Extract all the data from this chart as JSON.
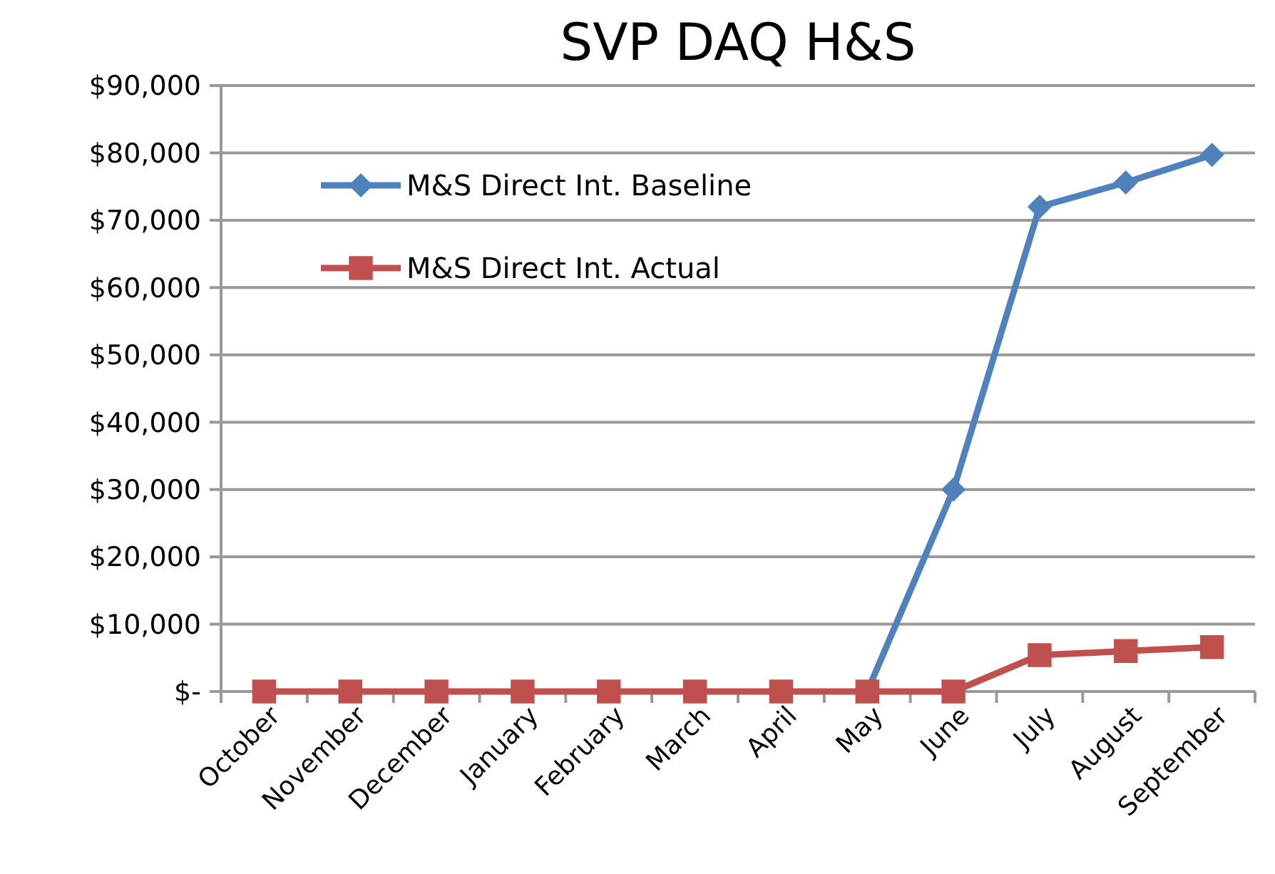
{
  "chart_data": {
    "type": "line",
    "title": "SVP DAQ H&S",
    "categories": [
      "October",
      "November",
      "December",
      "January",
      "February",
      "March",
      "April",
      "May",
      "June",
      "July",
      "August",
      "September"
    ],
    "series": [
      {
        "name": "M&S Direct Int. Baseline",
        "color": "#4f81bd",
        "marker": "diamond",
        "values": [
          null,
          null,
          null,
          null,
          null,
          null,
          null,
          0,
          30000,
          72000,
          75600,
          79700
        ]
      },
      {
        "name": "M&S Direct Int. Actual",
        "color": "#c0504d",
        "marker": "square",
        "values": [
          0,
          0,
          0,
          0,
          0,
          0,
          0,
          0,
          0,
          5400,
          6000,
          6600
        ]
      }
    ],
    "ylim": [
      0,
      90000
    ],
    "yticks": [
      {
        "value": 0,
        "label": "$-"
      },
      {
        "value": 10000,
        "label": "$10,000"
      },
      {
        "value": 20000,
        "label": "$20,000"
      },
      {
        "value": 30000,
        "label": "$30,000"
      },
      {
        "value": 40000,
        "label": "$40,000"
      },
      {
        "value": 50000,
        "label": "$50,000"
      },
      {
        "value": 60000,
        "label": "$60,000"
      },
      {
        "value": 70000,
        "label": "$70,000"
      },
      {
        "value": 80000,
        "label": "$80,000"
      },
      {
        "value": 90000,
        "label": "$90,000"
      }
    ],
    "grid": "y",
    "legend": "top left"
  }
}
